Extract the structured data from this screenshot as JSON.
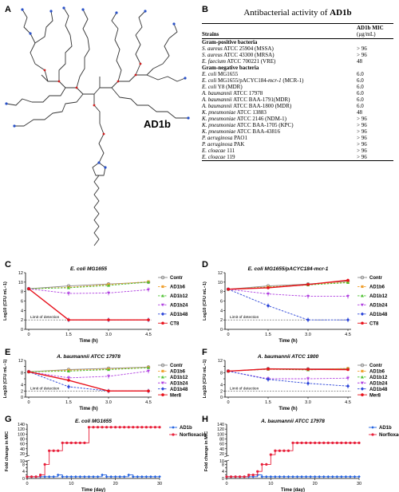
{
  "panels": {
    "A": "A",
    "B": "B",
    "C": "C",
    "D": "D",
    "E": "E",
    "F": "F",
    "G": "G",
    "H": "H"
  },
  "molecule": {
    "label": "AD1b"
  },
  "table": {
    "title_prefix": "Antibacterial activity of ",
    "title_bold": "AD1b",
    "col_strains": "Strains",
    "col_mic_bold": "AD1b",
    "col_mic_rest": " MIC",
    "col_mic_unit": "(μg/mL)",
    "groups": [
      {
        "name": "Gram-positive bacteria",
        "rows": [
          {
            "species": "S. aureus",
            "strain": " ATCC 25904 (MSSA)",
            "mic": "> 96"
          },
          {
            "species": "S. aureus",
            "strain": " ATCC 43300 (MRSA)",
            "mic": "> 96"
          },
          {
            "species": "E. faecium",
            "strain": " ATCC 700221 (VRE)",
            "mic": "48"
          }
        ]
      },
      {
        "name": "Gram-negative bacteria",
        "rows": [
          {
            "species": "E. coli",
            "strain": " MG1655",
            "mic": "6.0"
          },
          {
            "species": "E. coli",
            "strain": " MG1655/pACYC184-",
            "strain_it": "mcr-1",
            "strain_end": " (MCR-1)",
            "mic": "6.0"
          },
          {
            "species": "E. coli",
            "strain": " Y8 (MDR)",
            "mic": "6.0"
          },
          {
            "species": "A. baumannii",
            "strain": " ATCC 17978",
            "mic": "6.0"
          },
          {
            "species": "A. baumannii",
            "strain": " ATCC BAA-1791(MDR)",
            "mic": "6.0"
          },
          {
            "species": "A. baumannii",
            "strain": " ATCC BAA-1800 (MDR)",
            "mic": "6.0"
          },
          {
            "species": "K. pneumoniae",
            "strain": " ATCC 13883",
            "mic": "48"
          },
          {
            "species": "K. pneumoniae",
            "strain": " ATCC 2146 (NDM-1)",
            "mic": "> 96"
          },
          {
            "species": "K. pneumoniae",
            "strain": " ATCC BAA-1705 (KPC)",
            "mic": "> 96"
          },
          {
            "species": "K. pneumoniae",
            "strain": " ATCC BAA-43816",
            "mic": "> 96"
          },
          {
            "species": "P. aeruginosa",
            "strain": " PAO1",
            "mic": "> 96"
          },
          {
            "species": "P. aeruginosa",
            "strain": " PAK",
            "mic": "> 96"
          },
          {
            "species": "E. cloacae",
            "strain": " 111",
            "mic": "> 96"
          },
          {
            "species": "E. cloacae",
            "strain": " 119",
            "mic": "> 96"
          }
        ]
      }
    ]
  },
  "colors": {
    "Contr": "#888888",
    "AD1b6": "#f0a030",
    "AD1b12": "#4cc230",
    "AD1b24": "#b040e0",
    "AD1b48": "#2a44d8",
    "CT8": "#e8101a",
    "Mer8": "#e8101a",
    "Norfloxacin": "#e8203a",
    "AD1b_line": "#2060e0"
  },
  "chart_data": [
    {
      "id": "C",
      "type": "line",
      "title": "E. coli MG1655",
      "xlabel": "Time (h)",
      "ylabel": "Log10 (CFU mL−1)",
      "x": [
        0,
        1.5,
        3.0,
        4.5
      ],
      "xticks": [
        "0",
        "1.5",
        "3.0",
        "4.5"
      ],
      "ylim": [
        0,
        12
      ],
      "yticks": [
        0,
        2,
        4,
        6,
        8,
        10,
        12
      ],
      "detection_limit": 2,
      "detection_label": "Limit of detection",
      "series": [
        {
          "name": "Contr",
          "values": [
            8.6,
            9.2,
            9.6,
            10.0
          ]
        },
        {
          "name": "AD1b6",
          "values": [
            8.6,
            8.9,
            9.5,
            10.1
          ]
        },
        {
          "name": "AD1b12",
          "values": [
            8.6,
            8.8,
            9.3,
            10.0
          ]
        },
        {
          "name": "AD1b24",
          "values": [
            8.6,
            7.6,
            7.7,
            8.4
          ]
        },
        {
          "name": "AD1b48",
          "values": [
            8.6,
            2.0,
            2.0,
            2.0
          ]
        },
        {
          "name": "CT8",
          "values": [
            8.6,
            2.0,
            2.0,
            2.0
          ]
        }
      ],
      "legend": "right"
    },
    {
      "id": "D",
      "type": "line",
      "title_plain": "E. coli MG1655/pACYC184-",
      "title_it_end": "mcr-1",
      "xlabel": "Time (h)",
      "ylabel": "Log10 (CFU mL−1)",
      "x": [
        0,
        1.5,
        3.0,
        4.5
      ],
      "xticks": [
        "0",
        "1.5",
        "3.0",
        "4.5"
      ],
      "ylim": [
        0,
        12
      ],
      "yticks": [
        0,
        2,
        4,
        6,
        8,
        10,
        12
      ],
      "detection_limit": 2,
      "detection_label": "Limit of detection",
      "series": [
        {
          "name": "Contr",
          "values": [
            8.5,
            9.2,
            9.6,
            10.2
          ]
        },
        {
          "name": "AD1b6",
          "values": [
            8.5,
            9.0,
            9.5,
            10.0
          ]
        },
        {
          "name": "AD1b12",
          "values": [
            8.5,
            8.9,
            9.4,
            9.9
          ]
        },
        {
          "name": "AD1b24",
          "values": [
            8.5,
            7.5,
            7.0,
            7.0
          ]
        },
        {
          "name": "AD1b48",
          "values": [
            8.5,
            5.0,
            2.0,
            2.0
          ]
        },
        {
          "name": "CT8",
          "values": [
            8.5,
            8.8,
            9.5,
            10.4
          ]
        }
      ],
      "legend": "right"
    },
    {
      "id": "E",
      "type": "line",
      "title": "A. baumannii ATCC 17978",
      "xlabel": "Time (h)",
      "ylabel": "Log10 (CFU mL−1)",
      "x": [
        0,
        1.5,
        3.0,
        4.5
      ],
      "xticks": [
        "0",
        "1.5",
        "3.0",
        "4.5"
      ],
      "ylim": [
        0,
        12
      ],
      "yticks": [
        0,
        2,
        4,
        6,
        8,
        10,
        12
      ],
      "detection_limit": 2,
      "detection_label": "Limit of detection",
      "series": [
        {
          "name": "Contr",
          "values": [
            8.3,
            9.0,
            9.4,
            9.8
          ]
        },
        {
          "name": "AD1b6",
          "values": [
            8.3,
            8.8,
            9.2,
            9.7
          ]
        },
        {
          "name": "AD1b12",
          "values": [
            8.3,
            8.5,
            9.0,
            9.6
          ]
        },
        {
          "name": "AD1b24",
          "values": [
            8.3,
            6.3,
            6.8,
            8.5
          ]
        },
        {
          "name": "AD1b48",
          "values": [
            8.3,
            3.4,
            2.0,
            2.0
          ]
        },
        {
          "name": "Mer8",
          "values": [
            8.3,
            5.5,
            2.0,
            2.0
          ]
        }
      ],
      "legend": "right"
    },
    {
      "id": "F",
      "type": "line",
      "title": "A. baumannii ATCC 1800",
      "xlabel": "Time (h)",
      "ylabel": "Log10 (CFU mL−1)",
      "x": [
        0,
        1.5,
        3.0,
        4.5
      ],
      "xticks": [
        "0",
        "1.5",
        "3.0",
        "4.5"
      ],
      "ylim": [
        0,
        12
      ],
      "yticks": [
        0,
        2,
        4,
        6,
        8,
        10,
        12
      ],
      "detection_limit": 2,
      "detection_label": "Limit of detection",
      "series": [
        {
          "name": "Contr",
          "values": [
            8.5,
            9.3,
            9.2,
            9.3
          ]
        },
        {
          "name": "AD1b6",
          "values": [
            8.5,
            9.2,
            9.0,
            9.4
          ]
        },
        {
          "name": "AD1b12",
          "values": [
            8.5,
            9.1,
            8.9,
            9.2
          ]
        },
        {
          "name": "AD1b24",
          "values": [
            8.5,
            6.0,
            6.0,
            6.2
          ]
        },
        {
          "name": "AD1b48",
          "values": [
            8.5,
            5.8,
            4.5,
            3.6
          ]
        },
        {
          "name": "Mer8",
          "values": [
            8.5,
            9.2,
            9.1,
            9.0
          ]
        }
      ],
      "legend": "right"
    },
    {
      "id": "G",
      "type": "line",
      "title": "E. coli MG1655",
      "xlabel": "Time (day)",
      "ylabel": "Fold change in MIC",
      "xlim": [
        0,
        30
      ],
      "xticks": [
        0,
        10,
        20,
        30
      ],
      "yticks_low": [
        0,
        2,
        4,
        6,
        8,
        10
      ],
      "yticks_high": [
        20,
        40,
        60,
        80,
        100,
        120,
        140
      ],
      "series": [
        {
          "name": "AD1b",
          "x": [
            0,
            1,
            2,
            3,
            4,
            5,
            6,
            7,
            8,
            9,
            10,
            11,
            12,
            13,
            14,
            15,
            16,
            17,
            18,
            19,
            20,
            21,
            22,
            23,
            24,
            25,
            26,
            27,
            28,
            29,
            30
          ],
          "values": [
            1,
            1,
            1,
            1,
            1,
            1,
            1,
            2,
            1,
            1,
            1,
            1,
            1,
            1,
            1,
            1,
            1,
            2,
            1,
            1,
            1,
            1,
            1,
            2,
            1,
            1,
            1,
            1,
            1,
            1,
            1
          ]
        },
        {
          "name": "Norfloxacin",
          "x": [
            0,
            1,
            2,
            3,
            4,
            5,
            6,
            7,
            8,
            9,
            10,
            11,
            12,
            13,
            14,
            15,
            16,
            17,
            18,
            19,
            20,
            21,
            22,
            23,
            24,
            25,
            26,
            27,
            28,
            29,
            30
          ],
          "values": [
            1,
            1,
            1,
            2,
            8,
            32,
            32,
            32,
            64,
            64,
            64,
            64,
            64,
            64,
            128,
            128,
            128,
            128,
            128,
            128,
            128,
            128,
            128,
            128,
            128,
            128,
            128,
            128,
            128,
            128,
            128
          ]
        }
      ],
      "legend": "top-right"
    },
    {
      "id": "H",
      "type": "line",
      "title": "A. baumannii ATCC 17978",
      "xlabel": "Time (day)",
      "ylabel": "Fold change in MIC",
      "xlim": [
        0,
        30
      ],
      "xticks": [
        0,
        10,
        20,
        30
      ],
      "yticks_low": [
        0,
        2,
        4,
        6,
        8,
        10
      ],
      "yticks_high": [
        20,
        40,
        60,
        80,
        100,
        120,
        140
      ],
      "series": [
        {
          "name": "AD1b",
          "x": [
            0,
            1,
            2,
            3,
            4,
            5,
            6,
            7,
            8,
            9,
            10,
            11,
            12,
            13,
            14,
            15,
            16,
            17,
            18,
            19,
            20,
            21,
            22,
            23,
            24,
            25,
            26,
            27,
            28,
            29,
            30
          ],
          "values": [
            1,
            1,
            1,
            1,
            1,
            1,
            1,
            2,
            1,
            1,
            1,
            1,
            1,
            1,
            1,
            1,
            1,
            1,
            1,
            1,
            1,
            1,
            1,
            1,
            1,
            1,
            1,
            1,
            1,
            1,
            1
          ]
        },
        {
          "name": "Norfloxacin",
          "x": [
            0,
            1,
            2,
            3,
            4,
            5,
            6,
            7,
            8,
            9,
            10,
            11,
            12,
            13,
            14,
            15,
            16,
            17,
            18,
            19,
            20,
            21,
            22,
            23,
            24,
            25,
            26,
            27,
            28,
            29,
            30
          ],
          "values": [
            1,
            1,
            1,
            1,
            1,
            2,
            2,
            4,
            8,
            8,
            16,
            32,
            32,
            32,
            32,
            64,
            64,
            64,
            64,
            64,
            64,
            64,
            64,
            64,
            64,
            64,
            64,
            64,
            64,
            64,
            64
          ]
        }
      ],
      "legend": "top-right"
    }
  ]
}
